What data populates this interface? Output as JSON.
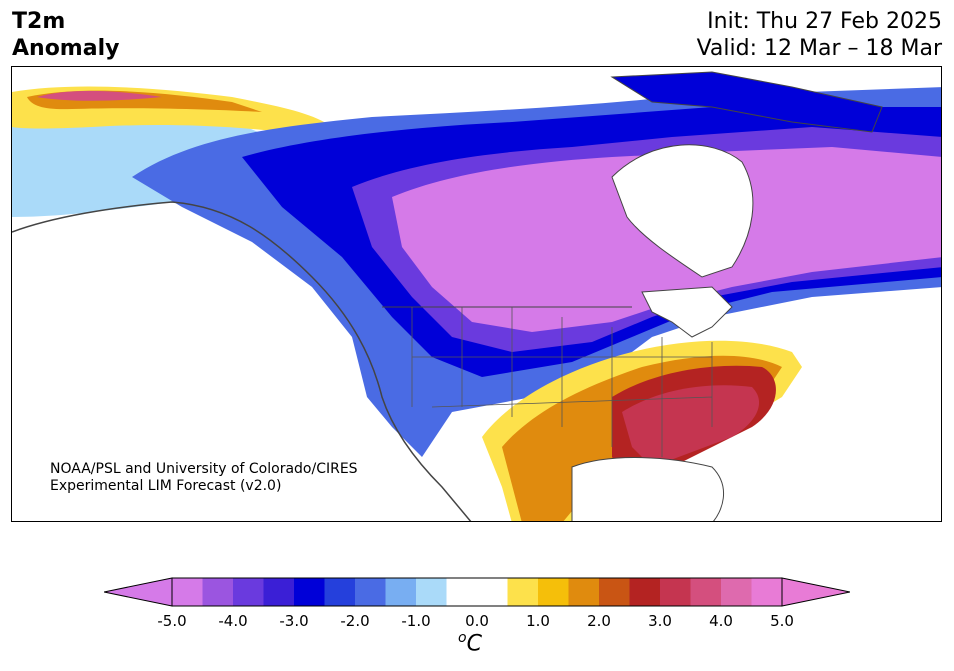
{
  "header": {
    "title_line1": "T2m",
    "title_line2": "Anomaly",
    "init": "Init: Thu 27 Feb 2025",
    "valid": "Valid: 12 Mar – 18 Mar"
  },
  "map": {
    "region": "North America",
    "credit_line1": "NOAA/PSL and University of Colorado/CIRES",
    "credit_line2": "Experimental LIM Forecast (v2.0)"
  },
  "colorbar": {
    "unit_base": "C",
    "unit_prefix": "o",
    "min": -5.0,
    "max": 5.0,
    "step": 0.5,
    "ticks": [
      "-5.0",
      "-4.0",
      "-3.0",
      "-2.0",
      "-1.0",
      "0.0",
      "1.0",
      "2.0",
      "3.0",
      "4.0",
      "5.0"
    ],
    "colors": [
      "#d57ae8",
      "#9b55e0",
      "#6a3ade",
      "#3b1fd6",
      "#0000d8",
      "#2540dc",
      "#4a6be4",
      "#78aef2",
      "#aadaf9",
      "#ffffff",
      "#ffffff",
      "#fde14b",
      "#f5bf0a",
      "#e08b0e",
      "#c95514",
      "#b42322",
      "#c53550",
      "#d44f7e",
      "#de6aae",
      "#e87bd6"
    ],
    "extend_low_color": "#d57ae8",
    "extend_high_color": "#e87bd6"
  }
}
